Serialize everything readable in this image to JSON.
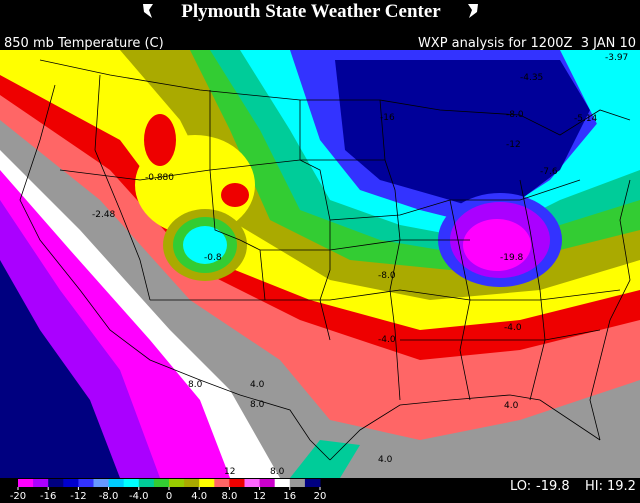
{
  "header": {
    "title": "Plymouth State Weather Center",
    "field": "850 mb Temperature (C)",
    "analysis": "WXP analysis for 1200Z  3 JAN 10"
  },
  "map": {
    "labels": [
      "-4.35",
      "-3.97",
      "-5.14",
      "-7.6",
      "-19.8",
      "-0.880",
      "-2.48",
      "-0.8",
      "-8.0",
      "-4.0",
      "4.0",
      "8.0",
      "8.0",
      "12",
      "8.0",
      "4.0",
      "4.0",
      "-4.0",
      "-8.0",
      "-12",
      "-16"
    ]
  },
  "colorbar": {
    "ticks": [
      "-20",
      "-16",
      "-12",
      "-8.0",
      "-4.0",
      "0",
      "4.0",
      "8.0",
      "12",
      "16",
      "20"
    ]
  },
  "extremes": {
    "lo_label": "LO:",
    "lo": -19.8,
    "hi_label": "HI:",
    "hi": 19.2
  }
}
